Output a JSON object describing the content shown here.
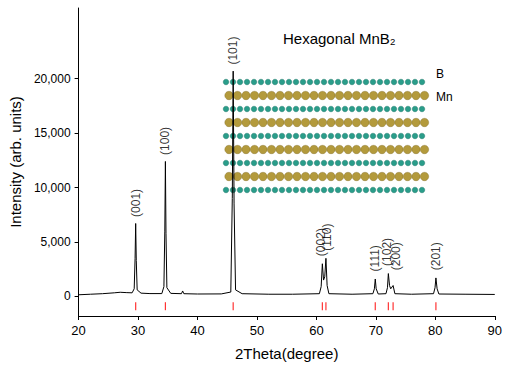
{
  "chart_data": {
    "type": "line",
    "title": "Hexagonal MnB₂",
    "x_label": "2Theta(degree)",
    "y_label": "Intensity (arb. units)",
    "x": [
      20,
      22,
      24,
      26,
      27,
      28,
      29.0,
      29.35,
      29.5,
      29.6,
      29.7,
      29.85,
      30.5,
      32,
      34.0,
      34.35,
      34.5,
      34.6,
      34.7,
      34.85,
      35.5,
      37.3,
      37.5,
      37.7,
      40,
      44,
      45.6,
      45.85,
      46.0,
      46.15,
      46.4,
      47.5,
      52,
      56,
      60.5,
      60.8,
      61.0,
      61.2,
      61.4,
      61.6,
      61.8,
      62.1,
      66,
      69.5,
      69.75,
      69.9,
      70.05,
      70.4,
      71.7,
      71.95,
      72.1,
      72.3,
      72.5,
      72.9,
      73.2,
      76,
      79.7,
      79.95,
      80.1,
      80.3,
      80.6,
      85,
      90
    ],
    "values": [
      150,
      200,
      250,
      330,
      380,
      350,
      330,
      700,
      3500,
      6700,
      3300,
      600,
      300,
      260,
      260,
      900,
      6000,
      12400,
      5800,
      800,
      280,
      250,
      500,
      250,
      220,
      230,
      400,
      9000,
      20700,
      8500,
      600,
      250,
      200,
      200,
      250,
      900,
      3000,
      1500,
      1800,
      3500,
      1000,
      250,
      200,
      250,
      700,
      1600,
      700,
      220,
      250,
      800,
      2100,
      1000,
      700,
      1000,
      250,
      200,
      250,
      800,
      1700,
      700,
      220,
      200,
      180
    ],
    "color": "#000000",
    "xlim": [
      20,
      90
    ],
    "xticks": [
      20,
      30,
      40,
      50,
      60,
      70,
      80,
      90
    ],
    "ylim": [
      -1800,
      26500
    ],
    "yticks": [
      0,
      5000,
      10000,
      15000,
      20000
    ],
    "grid": false,
    "annotations": [
      {
        "text": "(001)",
        "x": 29.6,
        "y": 7300
      },
      {
        "text": "(100)",
        "x": 34.6,
        "y": 13000
      },
      {
        "text": "(101)",
        "x": 46.0,
        "y": 21300
      },
      {
        "text": "(002)",
        "x": 60.7,
        "y": 3700
      },
      {
        "text": "(110)",
        "x": 61.8,
        "y": 4200
      },
      {
        "text": "(111)",
        "x": 69.9,
        "y": 2300
      },
      {
        "text": "(102)",
        "x": 71.9,
        "y": 2800
      },
      {
        "text": "(200)",
        "x": 73.4,
        "y": 2400
      },
      {
        "text": "(201)",
        "x": 80.1,
        "y": 2400
      }
    ],
    "reference_peaks": {
      "x": [
        29.6,
        34.6,
        46.0,
        61.0,
        61.6,
        69.9,
        72.1,
        72.9,
        80.1
      ],
      "y": -900,
      "color": "#ff0000"
    },
    "inset": {
      "labels": [
        {
          "text": "B",
          "color": "#2a9d8a"
        },
        {
          "text": "Mn",
          "color": "#b39a3c"
        }
      ]
    }
  }
}
